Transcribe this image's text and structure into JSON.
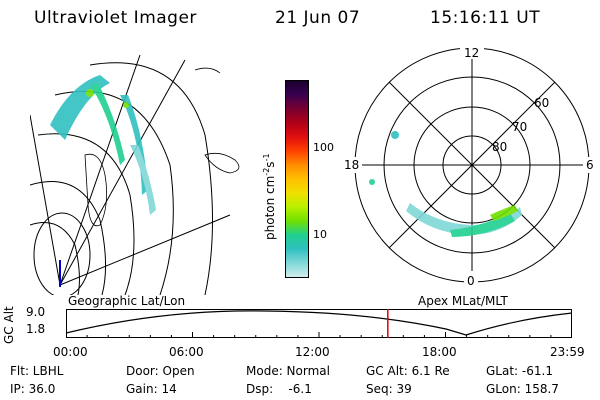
{
  "header": {
    "title": "Ultraviolet Imager",
    "date": "21 Jun 07",
    "time": "15:16:11 UT"
  },
  "colorbar": {
    "label_main": "photon cm",
    "label_exp": "-2",
    "label_s": "s",
    "label_exp2": "-1",
    "tick_100": "100",
    "tick_10": "10",
    "colors": [
      "#1a0030",
      "#3a0050",
      "#7a0030",
      "#b00018",
      "#e01010",
      "#ff4000",
      "#ff8c00",
      "#ffc000",
      "#f0e000",
      "#b8f000",
      "#70e000",
      "#20d090",
      "#30c0c0",
      "#80d8d8",
      "#d0ecec"
    ]
  },
  "polar": {
    "labels": {
      "top": "12",
      "bottom": "0",
      "left": "18",
      "right": "6"
    },
    "lat_labels": [
      "60",
      "70",
      "80"
    ]
  },
  "timeline": {
    "gc_alt_label": "GC Alt",
    "top_value": "9.0",
    "bottom_value": "1.8",
    "left_title": "Geographic Lat/Lon",
    "right_title": "Apex  MLat/MLT",
    "times": [
      "00:00",
      "06:00",
      "12:00",
      "18:00",
      "23:59"
    ],
    "current_time_fraction": 0.636
  },
  "info": {
    "flt": "Flt: LBHL",
    "ip": "IP: 36.0",
    "door": "Door: Open",
    "gain": "Gain: 14",
    "mode": "Mode: Normal",
    "dsp": "Dsp:    -6.1",
    "gcalt": "GC Alt: 6.1 Re",
    "seq": "Seq: 39",
    "glat": "GLat: -61.1",
    "glon": "GLon: 158.7"
  }
}
